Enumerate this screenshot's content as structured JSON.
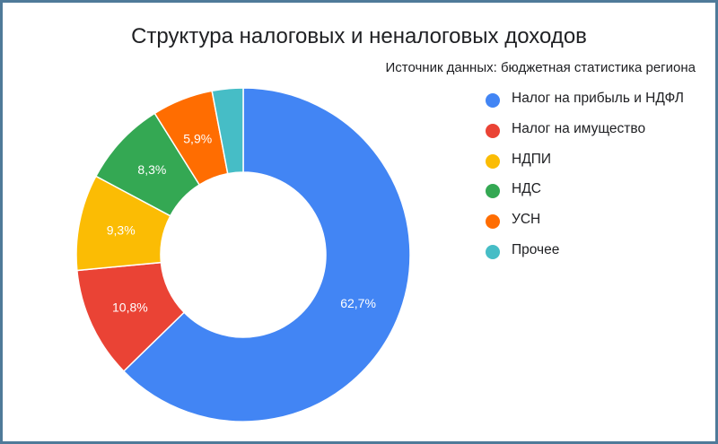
{
  "chart_data": {
    "type": "pie",
    "donut": true,
    "title": "Структура налоговых и неналоговых доходов",
    "subtitle": "Источник данных: бюджетная статистика региона",
    "legend_position": "right",
    "categories": [
      "Налог на прибыль и НДФЛ",
      "Налог на имущество",
      "НДПИ",
      "НДС",
      "УСН",
      "Прочее"
    ],
    "values": [
      62.7,
      10.8,
      9.3,
      8.3,
      5.9,
      3.0
    ],
    "data_labels": [
      "62,7%",
      "10,8%",
      "9,3%",
      "8,3%",
      "5,9%",
      ""
    ],
    "colors": [
      "#4285f4",
      "#ea4335",
      "#fbbc04",
      "#34a853",
      "#ff6d01",
      "#46bdc6"
    ]
  }
}
